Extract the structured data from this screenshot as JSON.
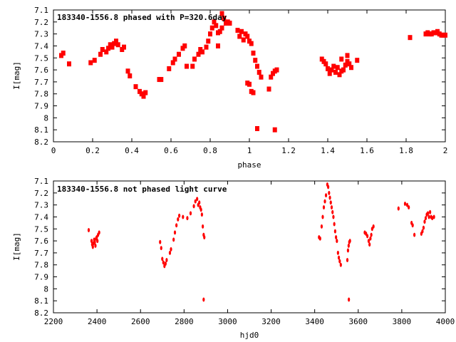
{
  "chart_data": [
    {
      "type": "scatter",
      "title": "183340-1556.8 phased with P=320.6day",
      "xlabel": "phase",
      "ylabel": "I[mag]",
      "xlim": [
        0,
        2
      ],
      "ylim": [
        7.1,
        8.2
      ],
      "y_inverted": true,
      "x_ticks": [
        "0",
        "0.2",
        "0.4",
        "0.6",
        "0.8",
        "1",
        "1.2",
        "1.4",
        "1.6",
        "1.8",
        "2"
      ],
      "y_ticks": [
        "7.1",
        "7.2",
        "7.3",
        "7.4",
        "7.5",
        "7.6",
        "7.7",
        "7.8",
        "7.9",
        "8",
        "8.1",
        "8.2"
      ],
      "grid": false,
      "marker_color": "#ff0000",
      "points": [
        [
          0.04,
          7.48
        ],
        [
          0.05,
          7.46
        ],
        [
          0.08,
          7.55
        ],
        [
          0.19,
          7.54
        ],
        [
          0.21,
          7.52
        ],
        [
          0.24,
          7.47
        ],
        [
          0.25,
          7.43
        ],
        [
          0.27,
          7.45
        ],
        [
          0.28,
          7.42
        ],
        [
          0.29,
          7.39
        ],
        [
          0.3,
          7.41
        ],
        [
          0.31,
          7.38
        ],
        [
          0.32,
          7.36
        ],
        [
          0.33,
          7.39
        ],
        [
          0.35,
          7.43
        ],
        [
          0.36,
          7.41
        ],
        [
          0.38,
          7.61
        ],
        [
          0.39,
          7.65
        ],
        [
          0.42,
          7.74
        ],
        [
          0.44,
          7.78
        ],
        [
          0.45,
          7.8
        ],
        [
          0.46,
          7.82
        ],
        [
          0.47,
          7.79
        ],
        [
          0.54,
          7.68
        ],
        [
          0.55,
          7.68
        ],
        [
          0.59,
          7.59
        ],
        [
          0.61,
          7.54
        ],
        [
          0.62,
          7.51
        ],
        [
          0.64,
          7.47
        ],
        [
          0.66,
          7.42
        ],
        [
          0.67,
          7.4
        ],
        [
          0.68,
          7.57
        ],
        [
          0.71,
          7.57
        ],
        [
          0.72,
          7.51
        ],
        [
          0.74,
          7.47
        ],
        [
          0.75,
          7.43
        ],
        [
          0.76,
          7.45
        ],
        [
          0.78,
          7.41
        ],
        [
          0.79,
          7.36
        ],
        [
          0.8,
          7.3
        ],
        [
          0.81,
          7.25
        ],
        [
          0.82,
          7.2
        ],
        [
          0.83,
          7.23
        ],
        [
          0.84,
          7.29
        ],
        [
          0.85,
          7.28
        ],
        [
          0.86,
          7.25
        ],
        [
          0.86,
          7.13
        ],
        [
          0.87,
          7.17
        ],
        [
          0.88,
          7.21
        ],
        [
          0.89,
          7.2
        ],
        [
          0.9,
          7.21
        ],
        [
          0.84,
          7.4
        ],
        [
          0.94,
          7.27
        ],
        [
          0.95,
          7.32
        ],
        [
          0.96,
          7.28
        ],
        [
          0.97,
          7.35
        ],
        [
          0.98,
          7.3
        ],
        [
          0.99,
          7.32
        ],
        [
          1.0,
          7.36
        ],
        [
          1.01,
          7.38
        ],
        [
          1.02,
          7.46
        ],
        [
          1.03,
          7.52
        ],
        [
          1.04,
          7.57
        ],
        [
          1.05,
          7.62
        ],
        [
          1.06,
          7.66
        ],
        [
          0.99,
          7.71
        ],
        [
          1.0,
          7.72
        ],
        [
          1.01,
          7.78
        ],
        [
          1.02,
          7.79
        ],
        [
          1.04,
          8.09
        ],
        [
          1.13,
          8.1
        ],
        [
          1.1,
          7.76
        ],
        [
          1.11,
          7.66
        ],
        [
          1.12,
          7.63
        ],
        [
          1.13,
          7.61
        ],
        [
          1.14,
          7.6
        ],
        [
          1.37,
          7.51
        ],
        [
          1.38,
          7.53
        ],
        [
          1.39,
          7.55
        ],
        [
          1.4,
          7.59
        ],
        [
          1.41,
          7.63
        ],
        [
          1.42,
          7.6
        ],
        [
          1.43,
          7.57
        ],
        [
          1.44,
          7.62
        ],
        [
          1.45,
          7.58
        ],
        [
          1.46,
          7.64
        ],
        [
          1.47,
          7.61
        ],
        [
          1.48,
          7.6
        ],
        [
          1.49,
          7.56
        ],
        [
          1.5,
          7.53
        ],
        [
          1.51,
          7.55
        ],
        [
          1.47,
          7.51
        ],
        [
          1.5,
          7.48
        ],
        [
          1.52,
          7.58
        ],
        [
          1.55,
          7.52
        ],
        [
          1.82,
          7.33
        ],
        [
          1.9,
          7.3
        ],
        [
          1.91,
          7.29
        ],
        [
          1.92,
          7.3
        ],
        [
          1.93,
          7.3
        ],
        [
          1.94,
          7.29
        ],
        [
          1.95,
          7.29
        ],
        [
          1.96,
          7.28
        ],
        [
          1.97,
          7.3
        ],
        [
          1.98,
          7.31
        ],
        [
          1.99,
          7.31
        ],
        [
          2.0,
          7.31
        ]
      ]
    },
    {
      "type": "scatter",
      "title": "183340-1556.8 not phased light curve",
      "xlabel": "hjd0",
      "ylabel": "I[mag]",
      "xlim": [
        2200,
        4000
      ],
      "ylim": [
        7.1,
        8.2
      ],
      "y_inverted": true,
      "x_ticks": [
        "2200",
        "2400",
        "2600",
        "2800",
        "3000",
        "3200",
        "3400",
        "3600",
        "3800",
        "4000"
      ],
      "y_ticks": [
        "7.1",
        "7.2",
        "7.3",
        "7.4",
        "7.5",
        "7.6",
        "7.7",
        "7.8",
        "7.9",
        "8",
        "8.1",
        "8.2"
      ],
      "grid": false,
      "marker_color": "#ff0000",
      "points": [
        [
          2362,
          7.51
        ],
        [
          2375,
          7.6
        ],
        [
          2378,
          7.63
        ],
        [
          2381,
          7.65
        ],
        [
          2384,
          7.62
        ],
        [
          2387,
          7.59
        ],
        [
          2390,
          7.61
        ],
        [
          2393,
          7.64
        ],
        [
          2396,
          7.58
        ],
        [
          2399,
          7.57
        ],
        [
          2402,
          7.6
        ],
        [
          2405,
          7.55
        ],
        [
          2410,
          7.53
        ],
        [
          2690,
          7.61
        ],
        [
          2695,
          7.66
        ],
        [
          2700,
          7.75
        ],
        [
          2705,
          7.78
        ],
        [
          2710,
          7.81
        ],
        [
          2715,
          7.79
        ],
        [
          2720,
          7.76
        ],
        [
          2735,
          7.7
        ],
        [
          2740,
          7.67
        ],
        [
          2752,
          7.59
        ],
        [
          2758,
          7.53
        ],
        [
          2765,
          7.47
        ],
        [
          2772,
          7.42
        ],
        [
          2778,
          7.39
        ],
        [
          2795,
          7.4
        ],
        [
          2815,
          7.41
        ],
        [
          2830,
          7.37
        ],
        [
          2845,
          7.31
        ],
        [
          2852,
          7.27
        ],
        [
          2860,
          7.25
        ],
        [
          2865,
          7.3
        ],
        [
          2870,
          7.28
        ],
        [
          2874,
          7.32
        ],
        [
          2878,
          7.34
        ],
        [
          2882,
          7.38
        ],
        [
          2886,
          7.48
        ],
        [
          2890,
          7.55
        ],
        [
          2893,
          7.57
        ],
        [
          2890,
          8.09
        ],
        [
          3420,
          7.57
        ],
        [
          3425,
          7.58
        ],
        [
          3432,
          7.48
        ],
        [
          3437,
          7.4
        ],
        [
          3442,
          7.32
        ],
        [
          3447,
          7.27
        ],
        [
          3452,
          7.22
        ],
        [
          3458,
          7.13
        ],
        [
          3462,
          7.15
        ],
        [
          3466,
          7.2
        ],
        [
          3470,
          7.24
        ],
        [
          3474,
          7.28
        ],
        [
          3478,
          7.32
        ],
        [
          3482,
          7.36
        ],
        [
          3486,
          7.4
        ],
        [
          3490,
          7.46
        ],
        [
          3494,
          7.52
        ],
        [
          3498,
          7.57
        ],
        [
          3502,
          7.6
        ],
        [
          3507,
          7.7
        ],
        [
          3511,
          7.74
        ],
        [
          3515,
          7.77
        ],
        [
          3520,
          7.8
        ],
        [
          3550,
          7.76
        ],
        [
          3553,
          7.68
        ],
        [
          3556,
          7.64
        ],
        [
          3559,
          7.61
        ],
        [
          3562,
          7.6
        ],
        [
          3557,
          8.09
        ],
        [
          3630,
          7.53
        ],
        [
          3636,
          7.54
        ],
        [
          3642,
          7.56
        ],
        [
          3648,
          7.6
        ],
        [
          3652,
          7.63
        ],
        [
          3656,
          7.58
        ],
        [
          3660,
          7.55
        ],
        [
          3664,
          7.5
        ],
        [
          3670,
          7.48
        ],
        [
          3785,
          7.33
        ],
        [
          3815,
          7.29
        ],
        [
          3825,
          7.3
        ],
        [
          3832,
          7.32
        ],
        [
          3845,
          7.45
        ],
        [
          3850,
          7.47
        ],
        [
          3858,
          7.55
        ],
        [
          3890,
          7.54
        ],
        [
          3895,
          7.52
        ],
        [
          3900,
          7.49
        ],
        [
          3905,
          7.44
        ],
        [
          3910,
          7.41
        ],
        [
          3915,
          7.38
        ],
        [
          3920,
          7.37
        ],
        [
          3925,
          7.4
        ],
        [
          3930,
          7.36
        ],
        [
          3935,
          7.4
        ],
        [
          3940,
          7.41
        ],
        [
          3948,
          7.4
        ]
      ]
    }
  ]
}
